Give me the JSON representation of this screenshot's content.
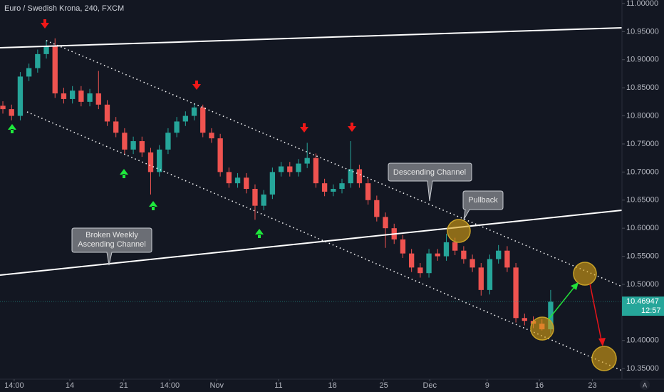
{
  "chart_data": {
    "type": "candlestick",
    "title": "Euro / Swedish Krona, 240, FXCM",
    "x": [
      0,
      1,
      2,
      3,
      4,
      5,
      6,
      7,
      8,
      9,
      10,
      11,
      12,
      13,
      14,
      15,
      16,
      17,
      18,
      19,
      20,
      21,
      22,
      23,
      24,
      25,
      26,
      27,
      28,
      29,
      30,
      31,
      32,
      33,
      34,
      35,
      36,
      37,
      38,
      39,
      40,
      41,
      42,
      43,
      44,
      45,
      46,
      47,
      48,
      49,
      50,
      51,
      52,
      53,
      54,
      55,
      56,
      57,
      58,
      59,
      60,
      61,
      62,
      63
    ],
    "open": [
      10.818,
      10.812,
      10.8,
      10.87,
      10.885,
      10.91,
      10.925,
      10.84,
      10.83,
      10.845,
      10.825,
      10.84,
      10.82,
      10.79,
      10.77,
      10.74,
      10.755,
      10.735,
      10.7,
      10.74,
      10.77,
      10.79,
      10.8,
      10.815,
      10.77,
      10.76,
      10.7,
      10.68,
      10.69,
      10.67,
      10.64,
      10.66,
      10.7,
      10.71,
      10.7,
      10.715,
      10.725,
      10.68,
      10.665,
      10.67,
      10.68,
      10.705,
      10.68,
      10.65,
      10.62,
      10.6,
      10.58,
      10.555,
      10.53,
      10.52,
      10.555,
      10.55,
      10.575,
      10.56,
      10.545,
      10.53,
      10.49,
      10.545,
      10.56,
      10.53,
      10.44,
      10.435,
      10.43,
      10.42
    ],
    "high": [
      10.826,
      10.82,
      10.878,
      10.893,
      10.918,
      10.935,
      10.938,
      10.85,
      10.853,
      10.853,
      10.848,
      10.88,
      10.828,
      10.798,
      10.778,
      10.763,
      10.763,
      10.743,
      10.748,
      10.778,
      10.798,
      10.808,
      10.822,
      10.82,
      10.778,
      10.768,
      10.708,
      10.698,
      10.698,
      10.678,
      10.668,
      10.708,
      10.718,
      10.718,
      10.723,
      10.752,
      10.733,
      10.688,
      10.678,
      10.688,
      10.755,
      10.713,
      10.688,
      10.658,
      10.628,
      10.608,
      10.588,
      10.563,
      10.538,
      10.563,
      10.563,
      10.59,
      10.583,
      10.568,
      10.553,
      10.538,
      10.553,
      10.57,
      10.568,
      10.538,
      10.448,
      10.443,
      10.438,
      10.49
    ],
    "low": [
      10.804,
      10.792,
      10.792,
      10.862,
      10.877,
      10.902,
      10.832,
      10.822,
      10.822,
      10.817,
      10.817,
      10.812,
      10.782,
      10.762,
      10.732,
      10.732,
      10.727,
      10.66,
      10.692,
      10.732,
      10.762,
      10.782,
      10.792,
      10.762,
      10.752,
      10.692,
      10.672,
      10.672,
      10.662,
      10.615,
      10.632,
      10.652,
      10.692,
      10.692,
      10.692,
      10.707,
      10.672,
      10.657,
      10.657,
      10.662,
      10.672,
      10.672,
      10.642,
      10.612,
      10.565,
      10.572,
      10.547,
      10.522,
      10.512,
      10.512,
      10.542,
      10.542,
      10.552,
      10.537,
      10.522,
      10.48,
      10.482,
      10.537,
      10.522,
      10.432,
      10.427,
      10.422,
      10.418,
      10.412
    ],
    "close": [
      10.812,
      10.8,
      10.87,
      10.885,
      10.91,
      10.925,
      10.84,
      10.83,
      10.845,
      10.825,
      10.84,
      10.82,
      10.79,
      10.77,
      10.74,
      10.755,
      10.735,
      10.7,
      10.74,
      10.77,
      10.79,
      10.8,
      10.815,
      10.77,
      10.76,
      10.7,
      10.68,
      10.69,
      10.67,
      10.64,
      10.66,
      10.7,
      10.71,
      10.7,
      10.715,
      10.725,
      10.68,
      10.665,
      10.67,
      10.68,
      10.705,
      10.68,
      10.65,
      10.62,
      10.6,
      10.58,
      10.555,
      10.53,
      10.52,
      10.555,
      10.55,
      10.575,
      10.56,
      10.545,
      10.53,
      10.49,
      10.545,
      10.56,
      10.53,
      10.44,
      10.435,
      10.43,
      10.42,
      10.469
    ],
    "up_color": "#26a69a",
    "down_color": "#ef5350",
    "xlim": [
      -0.33,
      71.2
    ],
    "xticks": [
      {
        "value": 1.3,
        "label": "14:00"
      },
      {
        "value": 7.7,
        "label": "14"
      },
      {
        "value": 13.9,
        "label": "21"
      },
      {
        "value": 19.2,
        "label": "14:00"
      },
      {
        "value": 24.6,
        "label": "Nov"
      },
      {
        "value": 31.7,
        "label": "11"
      },
      {
        "value": 37.9,
        "label": "18"
      },
      {
        "value": 43.8,
        "label": "25"
      },
      {
        "value": 49.1,
        "label": "Dec"
      },
      {
        "value": 55.7,
        "label": "9"
      },
      {
        "value": 61.7,
        "label": "16"
      },
      {
        "value": 67.8,
        "label": "23"
      }
    ],
    "ylim": [
      10.3312,
      11.0063
    ],
    "yticks": [
      {
        "value": 11.0,
        "label": "11.00000"
      },
      {
        "value": 10.95,
        "label": "10.95000"
      },
      {
        "value": 10.9,
        "label": "10.90000"
      },
      {
        "value": 10.85,
        "label": "10.85000"
      },
      {
        "value": 10.8,
        "label": "10.80000"
      },
      {
        "value": 10.75,
        "label": "10.75000"
      },
      {
        "value": 10.7,
        "label": "10.70000"
      },
      {
        "value": 10.65,
        "label": "10.65000"
      },
      {
        "value": 10.6,
        "label": "10.60000"
      },
      {
        "value": 10.55,
        "label": "10.55000"
      },
      {
        "value": 10.5,
        "label": "10.50000"
      },
      {
        "value": 10.45,
        "label": "10.45000"
      },
      {
        "value": 10.4,
        "label": "10.40000"
      },
      {
        "value": 10.35,
        "label": "10.35000"
      }
    ],
    "last_price": 10.46947,
    "countdown": "12:57",
    "annotations": [
      "Descending Channel",
      "Pullback",
      "Broken Weekly",
      "Ascending Channel"
    ],
    "auto_button": "A"
  }
}
